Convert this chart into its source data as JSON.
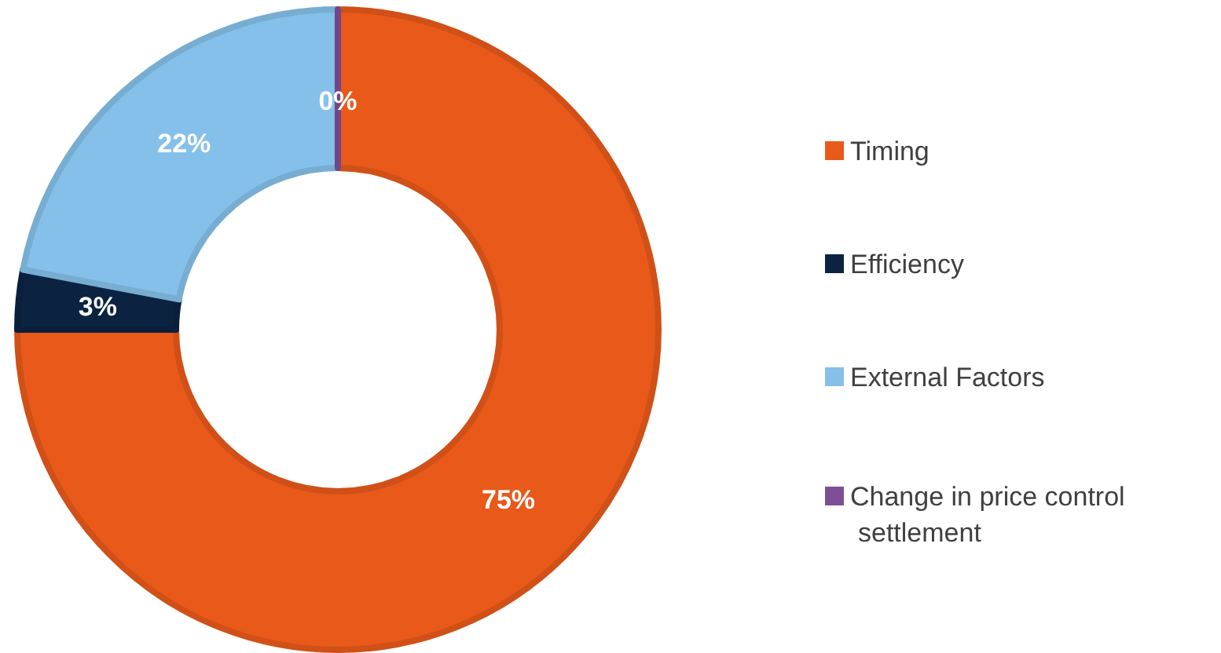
{
  "chart_data": {
    "type": "donut",
    "categories": [
      "Timing",
      "Efficiency",
      "External Factors",
      "Change in price control settlement"
    ],
    "values": [
      75,
      3,
      22,
      0
    ],
    "colors": [
      "#e8591a",
      "#0b2341",
      "#85c0ea",
      "#7f4f96"
    ],
    "value_labels": [
      "75%",
      "3%",
      "22%",
      "0%"
    ],
    "legend": "right"
  }
}
